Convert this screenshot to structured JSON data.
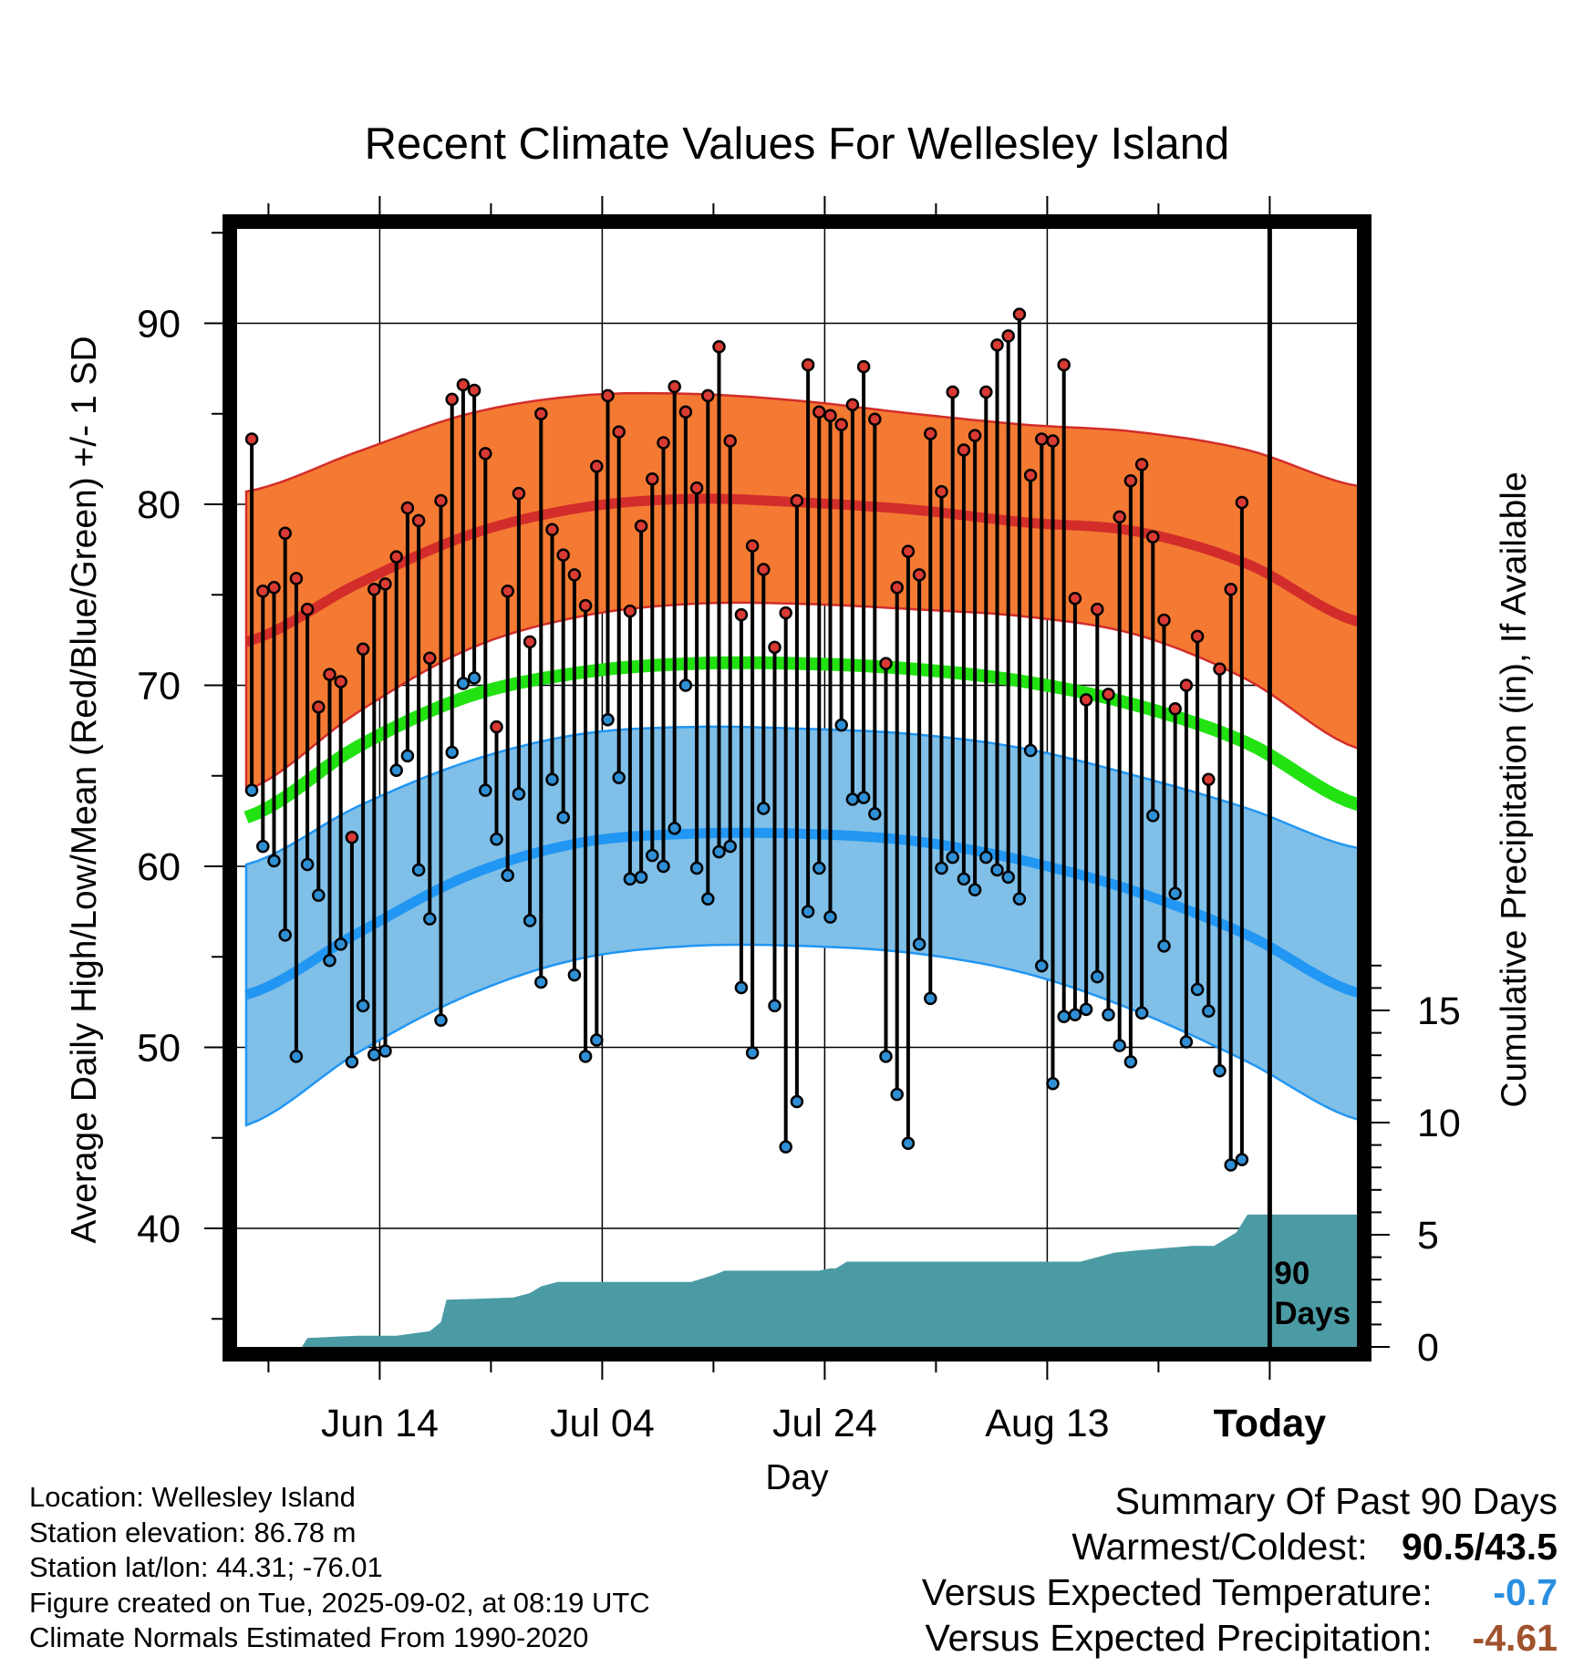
{
  "chart_data": {
    "type": "line",
    "title": "Recent Climate Values For Wellesley Island",
    "xlabel": "Day",
    "ylabel": "Average Daily High/Low/Mean (Red/Blue/Green) +/- 1 SD",
    "y2label": "Cumulative Precipitation (in), If Available",
    "x_tick_labels": [
      "Jun 14",
      "Jul 04",
      "Jul 24",
      "Aug 13",
      "Today"
    ],
    "x_tick_days": [
      12,
      32,
      52,
      72,
      92
    ],
    "xlim": [
      0,
      102
    ],
    "ylim": [
      34,
      94
    ],
    "y_ticks": [
      40,
      50,
      60,
      70,
      80,
      90
    ],
    "y2lim": [
      0,
      28
    ],
    "y2_ticks": [
      0,
      5,
      10,
      15
    ],
    "today_day": 92,
    "today_label_line1": "90",
    "today_label_line2": "Days",
    "colors": {
      "high_band": "#f47a33",
      "high_mean": "#d22d2a",
      "low_band": "#80bfe7",
      "low_mean": "#2196f3",
      "mean": "#22e212",
      "precip": "#4a9ba4",
      "high_dot": "#d93a34",
      "low_dot": "#2f8fd5"
    },
    "normals": {
      "days": [
        0,
        10,
        20,
        30,
        40,
        50,
        60,
        70,
        80,
        90,
        100
      ],
      "high_mean": [
        72.4,
        75.6,
        78.3,
        79.8,
        80.3,
        80.1,
        79.7,
        79.0,
        78.5,
        76.7,
        73.5
      ],
      "high_upper": [
        80.7,
        82.9,
        85.0,
        86.0,
        86.1,
        85.7,
        85.0,
        84.4,
        84.0,
        83.0,
        81.0
      ],
      "high_lower": [
        64.2,
        68.5,
        72.0,
        73.8,
        74.5,
        74.5,
        74.2,
        73.8,
        72.8,
        70.3,
        66.5
      ],
      "mean": [
        62.7,
        66.6,
        69.4,
        70.7,
        71.2,
        71.2,
        70.9,
        70.2,
        68.9,
        66.8,
        63.4
      ],
      "low_mean": [
        52.9,
        56.3,
        59.5,
        61.3,
        61.8,
        61.8,
        61.4,
        60.3,
        58.6,
        56.2,
        53.0
      ],
      "low_upper": [
        60.1,
        63.3,
        65.8,
        67.3,
        67.7,
        67.6,
        67.3,
        66.5,
        65.0,
        63.2,
        61.0
      ],
      "low_lower": [
        45.7,
        49.7,
        52.9,
        54.9,
        55.6,
        55.6,
        55.2,
        54.1,
        52.0,
        49.2,
        46.0
      ]
    },
    "series": [
      {
        "name": "High",
        "values": [
          83.6,
          75.2,
          75.4,
          78.4,
          75.9,
          74.2,
          68.8,
          70.6,
          70.2,
          61.6,
          72.0,
          75.3,
          75.6,
          77.1,
          79.8,
          79.1,
          71.5,
          80.2,
          85.8,
          86.6,
          86.3,
          82.8,
          67.7,
          75.2,
          80.6,
          72.4,
          85.0,
          78.6,
          77.2,
          76.1,
          74.4,
          82.1,
          86.0,
          84.0,
          74.1,
          78.8,
          81.4,
          83.4,
          86.5,
          85.1,
          80.9,
          86.0,
          88.7,
          83.5,
          73.9,
          77.7,
          76.4,
          72.1,
          74.0,
          80.2,
          87.7,
          85.1,
          84.9,
          84.4,
          85.5,
          87.6,
          84.7,
          71.2,
          75.4,
          77.4,
          76.1,
          83.9,
          80.7,
          86.2,
          83.0,
          83.8,
          86.2,
          88.8,
          89.3,
          90.5,
          81.6,
          83.6,
          83.5,
          87.7,
          74.8,
          69.2,
          74.2,
          69.5,
          79.3,
          81.3,
          82.2,
          78.2,
          73.6,
          68.7,
          70.0,
          72.7,
          64.8,
          70.9,
          75.3,
          80.1
        ]
      },
      {
        "name": "Low",
        "values": [
          64.2,
          61.1,
          60.3,
          56.2,
          49.5,
          60.1,
          58.4,
          54.8,
          55.7,
          49.2,
          52.3,
          49.6,
          49.8,
          65.3,
          66.1,
          59.8,
          57.1,
          51.5,
          66.3,
          70.1,
          70.4,
          64.2,
          61.5,
          59.5,
          64.0,
          57.0,
          53.6,
          64.8,
          62.7,
          54.0,
          49.5,
          50.4,
          68.1,
          64.9,
          59.3,
          59.4,
          60.6,
          60.0,
          62.1,
          70.0,
          59.9,
          58.2,
          60.8,
          61.1,
          53.3,
          49.7,
          63.2,
          52.3,
          44.5,
          47.0,
          57.5,
          59.9,
          57.2,
          67.8,
          63.7,
          63.8,
          62.9,
          49.5,
          47.4,
          44.7,
          55.7,
          52.7,
          59.9,
          60.5,
          59.3,
          58.7,
          60.5,
          59.8,
          59.4,
          58.2,
          66.4,
          54.5,
          48.0,
          51.7,
          51.8,
          52.1,
          53.9,
          51.8,
          50.1,
          49.2,
          51.9,
          62.8,
          55.6,
          58.5,
          50.3,
          53.2,
          52.0,
          48.7,
          43.5,
          43.8
        ]
      }
    ],
    "precip_cumulative": {
      "days": [
        0,
        5,
        5.5,
        10,
        13.5,
        15,
        16.5,
        17.5,
        18,
        24,
        25.5,
        26.5,
        28,
        31,
        40,
        42,
        43,
        51.5,
        52.5,
        53,
        54,
        75,
        78,
        80,
        85,
        87,
        89,
        90,
        91,
        102
      ],
      "values": [
        0,
        0,
        0.4,
        0.5,
        0.5,
        0.6,
        0.7,
        1.1,
        2.1,
        2.2,
        2.4,
        2.7,
        2.9,
        2.9,
        2.9,
        3.2,
        3.4,
        3.4,
        3.5,
        3.5,
        3.8,
        3.8,
        4.2,
        4.3,
        4.5,
        4.5,
        5.1,
        5.9,
        5.9,
        5.9
      ]
    }
  },
  "footer": {
    "location": "Location: Wellesley Island",
    "elevation": "Station elevation: 86.78 m",
    "latlon": "Station lat/lon: 44.31; -76.01",
    "created": "Figure created on Tue, 2025-09-02, at 08:19 UTC",
    "normals": "Climate Normals Estimated From 1990-2020"
  },
  "summary": {
    "title": "Summary Of Past 90 Days",
    "warm_label": "Warmest/Coldest:",
    "warm_value": "90.5/43.5",
    "temp_label": "Versus Expected Temperature:",
    "temp_value": "-0.7",
    "temp_color": "#2a8fe0",
    "precip_label": "Versus Expected Precipitation:",
    "precip_value": "-4.61",
    "precip_color": "#a0522d"
  }
}
